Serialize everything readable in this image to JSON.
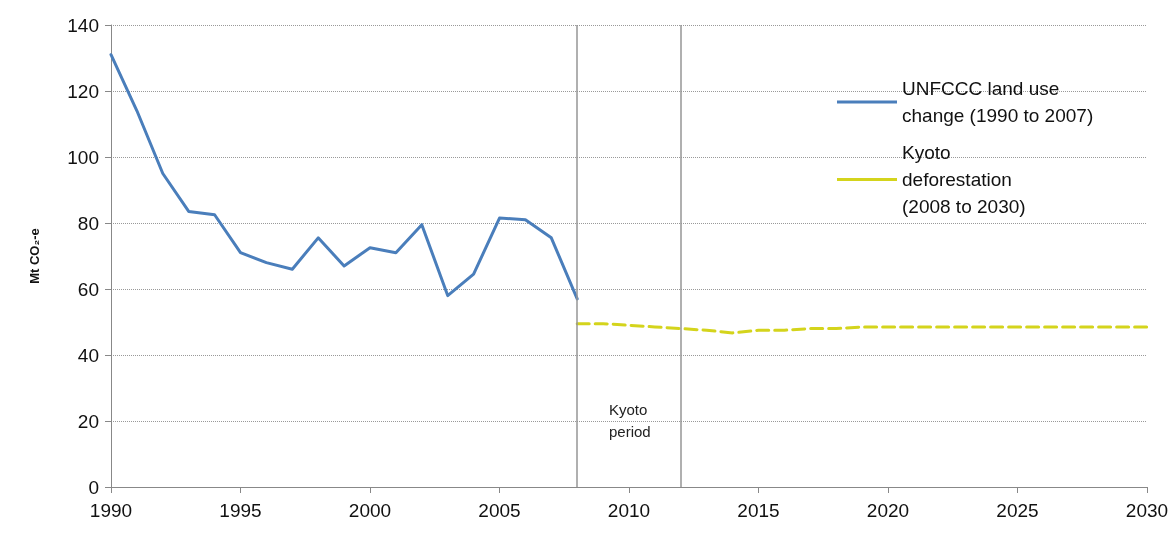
{
  "chart_data": {
    "type": "line",
    "ylabel": "Mt CO₂-e",
    "xlim": [
      1990,
      2030
    ],
    "xticks": [
      1990,
      1995,
      2000,
      2005,
      2010,
      2015,
      2020,
      2025,
      2030
    ],
    "ylim": [
      0,
      140
    ],
    "yticks": [
      0,
      20,
      40,
      60,
      80,
      100,
      120,
      140
    ],
    "grid": "y",
    "legend": "top right",
    "marker": "none",
    "series": [
      {
        "name": "UNFCCC land use change (1990 to 2007)",
        "color": "#4a7ebb",
        "line_style": "solid",
        "x": [
          1990,
          1991,
          1992,
          1993,
          1994,
          1995,
          1996,
          1997,
          1998,
          1999,
          2000,
          2001,
          2002,
          2003,
          2004,
          2005,
          2006,
          2007,
          2008
        ],
        "values": [
          131,
          114,
          95,
          83.5,
          82.5,
          71,
          68,
          66,
          75.5,
          67,
          72.5,
          71,
          79.5,
          58,
          64.5,
          81.5,
          81,
          75.5,
          57
        ]
      },
      {
        "name": "Kyoto deforestation (2008 to 2030)",
        "color": "#d4d41c",
        "line_style": "dashed",
        "x": [
          2008,
          2009,
          2010,
          2011,
          2012,
          2013,
          2014,
          2015,
          2016,
          2017,
          2018,
          2019,
          2020,
          2021,
          2022,
          2023,
          2024,
          2025,
          2026,
          2027,
          2028,
          2029,
          2030
        ],
        "values": [
          49.5,
          49.5,
          49,
          48.5,
          48,
          47.5,
          46.7,
          47.5,
          47.5,
          48,
          48,
          48.5,
          48.5,
          48.5,
          48.5,
          48.5,
          48.5,
          48.5,
          48.5,
          48.5,
          48.5,
          48.5,
          48.5
        ]
      }
    ],
    "ref_lines": [
      {
        "axis": "x",
        "value": 2008,
        "color": "#969696"
      },
      {
        "axis": "x",
        "value": 2012,
        "color": "#969696"
      }
    ],
    "annotations": [
      "Kyoto period"
    ]
  }
}
